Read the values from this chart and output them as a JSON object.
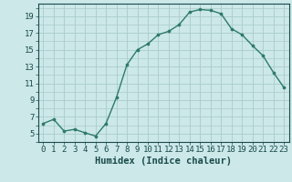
{
  "x": [
    0,
    1,
    2,
    3,
    4,
    5,
    6,
    7,
    8,
    9,
    10,
    11,
    12,
    13,
    14,
    15,
    16,
    17,
    18,
    19,
    20,
    21,
    22,
    23
  ],
  "y": [
    6.2,
    6.7,
    5.3,
    5.5,
    5.1,
    4.7,
    6.2,
    9.3,
    13.2,
    15.0,
    15.7,
    16.8,
    17.2,
    18.0,
    19.5,
    19.8,
    19.7,
    19.3,
    17.5,
    16.8,
    15.5,
    14.3,
    12.3,
    10.5
  ],
  "line_color": "#2d7a6a",
  "marker": "o",
  "marker_size": 2.2,
  "linewidth": 1.0,
  "xlabel": "Humidex (Indice chaleur)",
  "xlim": [
    -0.5,
    23.5
  ],
  "ylim": [
    4.0,
    20.5
  ],
  "yticks": [
    5,
    7,
    9,
    11,
    13,
    15,
    17,
    19
  ],
  "xticks": [
    0,
    1,
    2,
    3,
    4,
    5,
    6,
    7,
    8,
    9,
    10,
    11,
    12,
    13,
    14,
    15,
    16,
    17,
    18,
    19,
    20,
    21,
    22,
    23
  ],
  "xtick_labels": [
    "0",
    "1",
    "2",
    "3",
    "4",
    "5",
    "6",
    "7",
    "8",
    "9",
    "10",
    "11",
    "12",
    "13",
    "14",
    "15",
    "16",
    "17",
    "18",
    "19",
    "20",
    "21",
    "22",
    "23"
  ],
  "bg_color": "#cce8e8",
  "grid_color": "#aacccc",
  "font_color": "#1a4a4a",
  "xlabel_fontsize": 7.5,
  "tick_fontsize": 6.5
}
